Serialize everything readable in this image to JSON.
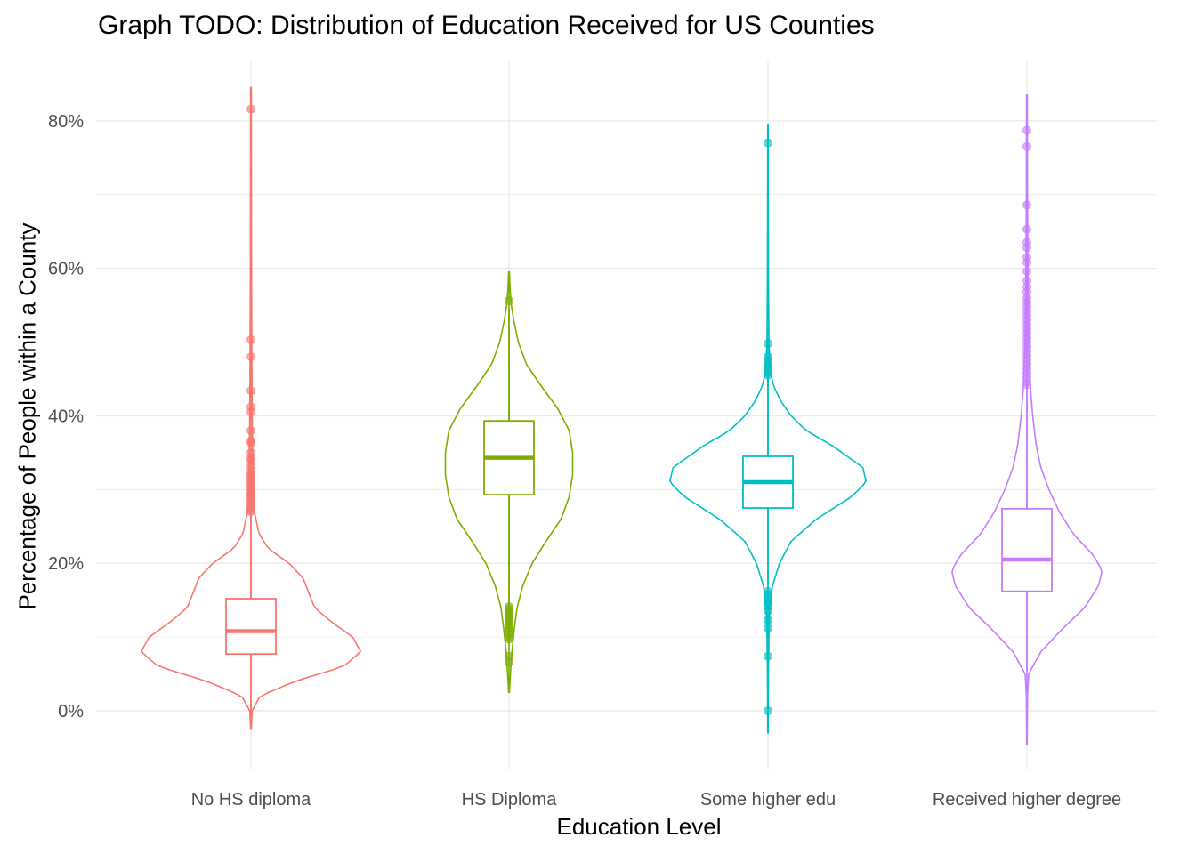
{
  "chart_data": {
    "type": "violin",
    "title": "Graph TODO: Distribution of Education Received for US Counties",
    "xlabel": "Education Level",
    "ylabel": "Percentage of People within a County",
    "ylim": [
      -8,
      88
    ],
    "y_ticks": [
      0,
      20,
      40,
      60,
      80
    ],
    "y_tick_labels": [
      "0%",
      "20%",
      "40%",
      "60%",
      "80%"
    ],
    "grid": true,
    "legend": "none",
    "categories": [
      "No HS diploma",
      "HS Diploma",
      "Some higher edu",
      "Received higher degree"
    ],
    "series": [
      {
        "color": "#F8766D",
        "violin_range": [
          -2.5,
          84.5
        ],
        "density": [
          [
            -2.5,
            0.003
          ],
          [
            0,
            0.01
          ],
          [
            2,
            0.08
          ],
          [
            4,
            0.38
          ],
          [
            6,
            0.8
          ],
          [
            8,
            0.95
          ],
          [
            10,
            0.88
          ],
          [
            12,
            0.7
          ],
          [
            14,
            0.55
          ],
          [
            16,
            0.5
          ],
          [
            18,
            0.45
          ],
          [
            20,
            0.33
          ],
          [
            22,
            0.15
          ],
          [
            24,
            0.07
          ],
          [
            27,
            0.03
          ],
          [
            30,
            0.02
          ],
          [
            35,
            0.015
          ],
          [
            40,
            0.01
          ],
          [
            50,
            0.007
          ],
          [
            60,
            0.005
          ],
          [
            70,
            0.004
          ],
          [
            84.5,
            0.003
          ]
        ],
        "box": {
          "q1": 7.7,
          "median": 10.8,
          "q3": 15.2,
          "whisker_low": 0,
          "whisker_high": 26.4
        },
        "outliers": [
          81.6,
          50.3,
          48.0,
          43.4,
          41.2,
          40.5,
          38.0,
          36.6,
          36.3,
          35.0,
          34.3,
          33.9,
          33.2,
          32.6,
          32.1,
          31.8,
          31.4,
          31.0,
          30.7,
          30.3,
          29.9,
          29.6,
          29.3,
          29.0,
          28.7,
          28.4,
          28.1,
          27.8,
          27.5,
          27.2,
          27.0
        ]
      },
      {
        "color": "#7CAE00",
        "violin_range": [
          2.5,
          59.5
        ],
        "density": [
          [
            2.5,
            0.003
          ],
          [
            5,
            0.012
          ],
          [
            8,
            0.025
          ],
          [
            11,
            0.045
          ],
          [
            14,
            0.07
          ],
          [
            17,
            0.12
          ],
          [
            20,
            0.2
          ],
          [
            23,
            0.32
          ],
          [
            26,
            0.45
          ],
          [
            29,
            0.52
          ],
          [
            32,
            0.55
          ],
          [
            35,
            0.55
          ],
          [
            38,
            0.52
          ],
          [
            41,
            0.42
          ],
          [
            44,
            0.28
          ],
          [
            47,
            0.15
          ],
          [
            50,
            0.08
          ],
          [
            53,
            0.04
          ],
          [
            55,
            0.02
          ],
          [
            57,
            0.01
          ],
          [
            59.5,
            0.003
          ]
        ],
        "box": {
          "q1": 29.3,
          "median": 34.3,
          "q3": 39.3,
          "whisker_low": 14.3,
          "whisker_high": 54.3
        },
        "outliers": [
          55.6,
          14.1,
          13.8,
          13.5,
          13.2,
          12.9,
          12.6,
          12.3,
          12.0,
          11.6,
          11.2,
          10.8,
          10.4,
          10.0,
          9.7,
          7.4,
          6.6
        ]
      },
      {
        "color": "#00BFC4",
        "violin_range": [
          -3,
          79.5
        ],
        "density": [
          [
            -3,
            0.002
          ],
          [
            5,
            0.004
          ],
          [
            10,
            0.008
          ],
          [
            14,
            0.015
          ],
          [
            17,
            0.04
          ],
          [
            20,
            0.1
          ],
          [
            23,
            0.2
          ],
          [
            26,
            0.42
          ],
          [
            29,
            0.72
          ],
          [
            31,
            0.85
          ],
          [
            33,
            0.82
          ],
          [
            36,
            0.55
          ],
          [
            38,
            0.33
          ],
          [
            40,
            0.2
          ],
          [
            42,
            0.11
          ],
          [
            44,
            0.05
          ],
          [
            46,
            0.02
          ],
          [
            50,
            0.008
          ],
          [
            60,
            0.004
          ],
          [
            70,
            0.003
          ],
          [
            79.5,
            0.002
          ]
        ],
        "box": {
          "q1": 27.5,
          "median": 31.0,
          "q3": 34.5,
          "whisker_low": 17.0,
          "whisker_high": 45.0
        },
        "outliers": [
          77.0,
          49.8,
          48.0,
          47.5,
          47.0,
          46.6,
          46.2,
          45.8,
          45.5,
          16.2,
          15.8,
          15.4,
          15.0,
          14.6,
          14.2,
          13.5,
          12.3,
          11.2,
          7.4,
          0.0
        ]
      },
      {
        "color": "#C77CFF",
        "violin_range": [
          -4.5,
          83.5
        ],
        "density": [
          [
            -4.5,
            0.002
          ],
          [
            2,
            0.005
          ],
          [
            5,
            0.015
          ],
          [
            8,
            0.12
          ],
          [
            11,
            0.3
          ],
          [
            14,
            0.5
          ],
          [
            17,
            0.62
          ],
          [
            19,
            0.65
          ],
          [
            21,
            0.58
          ],
          [
            24,
            0.4
          ],
          [
            27,
            0.28
          ],
          [
            30,
            0.19
          ],
          [
            33,
            0.12
          ],
          [
            36,
            0.08
          ],
          [
            40,
            0.05
          ],
          [
            44,
            0.03
          ],
          [
            50,
            0.015
          ],
          [
            60,
            0.008
          ],
          [
            70,
            0.005
          ],
          [
            83.5,
            0.003
          ]
        ],
        "box": {
          "q1": 16.2,
          "median": 20.5,
          "q3": 27.4,
          "whisker_low": 5.5,
          "whisker_high": 44.0
        },
        "outliers": [
          78.7,
          76.5,
          68.6,
          65.3,
          63.5,
          62.8,
          61.5,
          60.8,
          59.6,
          58.3,
          57.5,
          56.8,
          56.0,
          55.4,
          54.8,
          54.2,
          53.6,
          53.0,
          52.4,
          51.8,
          51.2,
          50.6,
          50.0,
          49.4,
          48.8,
          48.2,
          47.6,
          47.0,
          46.4,
          45.8,
          45.2,
          44.6,
          44.2
        ]
      }
    ]
  }
}
